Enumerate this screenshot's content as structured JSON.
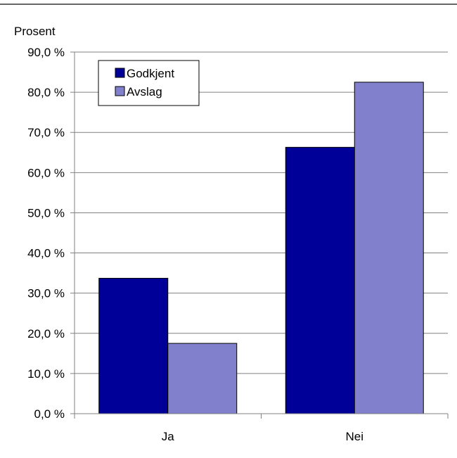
{
  "chart_data": {
    "type": "bar",
    "ylabel": "Prosent",
    "categories": [
      "Ja",
      "Nei"
    ],
    "series": [
      {
        "name": "Godkjent",
        "values": [
          33.7,
          66.3
        ],
        "color": "#000099"
      },
      {
        "name": "Avslag",
        "values": [
          17.5,
          82.5
        ],
        "color": "#8080cc"
      }
    ],
    "ylim": [
      0,
      90
    ],
    "ytick_step": 10,
    "ytick_labels": [
      "0,0 %",
      "10,0 %",
      "20,0 %",
      "30,0 %",
      "40,0 %",
      "50,0 %",
      "60,0 %",
      "70,0 %",
      "80,0 %",
      "90,0 %"
    ],
    "grid": true,
    "legend": "top-left"
  }
}
